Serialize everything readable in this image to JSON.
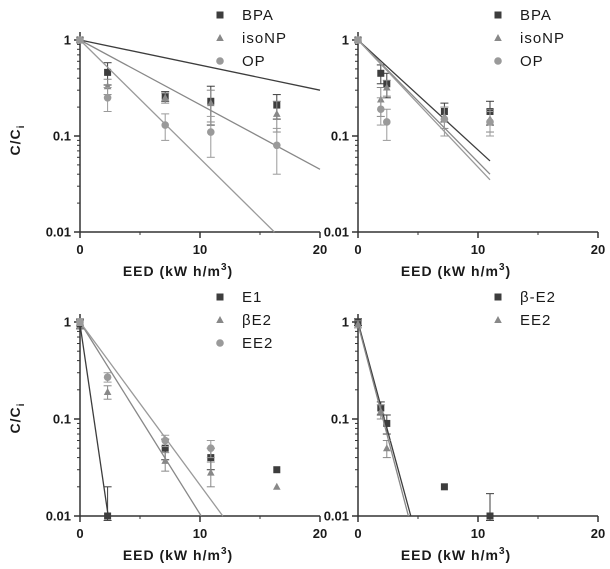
{
  "chart_data": [
    {
      "type": "scatter",
      "xlabel": "EED (kW h/m",
      "xlabel_sup": "3",
      "xlabel_close": ")",
      "ylabel": "C/C",
      "ylabel_sub": "i",
      "xlim": [
        0,
        20
      ],
      "ylim": [
        0.01,
        1
      ],
      "yscale": "log",
      "x_ticks": [
        "0",
        "10",
        "20"
      ],
      "y_ticks": [
        "0.01",
        "0.1",
        "1"
      ],
      "legend_position": "top-right",
      "series": [
        {
          "name": "BPA",
          "marker": "square",
          "color": "#3d3d3d",
          "points": [
            [
              0,
              1.0
            ],
            [
              2.3,
              0.46
            ],
            [
              7.1,
              0.26
            ],
            [
              10.9,
              0.23
            ],
            [
              16.4,
              0.21
            ]
          ],
          "errors": [
            0.05,
            0.12,
            0.03,
            0.1,
            0.06
          ],
          "fit_end": [
            20,
            0.3
          ]
        },
        {
          "name": "isoNP",
          "marker": "triangle",
          "color": "#888888",
          "points": [
            [
              0,
              1.0
            ],
            [
              2.3,
              0.33
            ],
            [
              7.1,
              0.25
            ],
            [
              10.9,
              0.22
            ],
            [
              16.4,
              0.17
            ]
          ],
          "errors": [
            0.05,
            0.06,
            0.03,
            0.08,
            0.06
          ],
          "fit_end": [
            20,
            0.045
          ]
        },
        {
          "name": "OP",
          "marker": "circle",
          "color": "#9a9a9a",
          "points": [
            [
              0,
              1.0
            ],
            [
              2.3,
              0.25
            ],
            [
              7.1,
              0.13
            ],
            [
              10.9,
              0.11
            ],
            [
              16.4,
              0.08
            ]
          ],
          "errors": [
            0.05,
            0.07,
            0.04,
            0.05,
            0.04
          ],
          "fit_end": [
            16.2,
            0.01
          ]
        }
      ]
    },
    {
      "type": "scatter",
      "xlabel": "EED (kW h/m",
      "xlabel_sup": "3",
      "xlabel_close": ")",
      "ylabel": "",
      "ylabel_sub": "",
      "xlim": [
        0,
        20
      ],
      "ylim": [
        0.01,
        1
      ],
      "yscale": "log",
      "x_ticks": [
        "0",
        "10",
        "20"
      ],
      "y_ticks": [
        "0.01",
        "0.1",
        "1"
      ],
      "legend_position": "top-right",
      "series": [
        {
          "name": "BPA",
          "marker": "square",
          "color": "#3d3d3d",
          "points": [
            [
              0,
              1.0
            ],
            [
              1.9,
              0.45
            ],
            [
              2.4,
              0.35
            ],
            [
              7.2,
              0.18
            ],
            [
              11.0,
              0.18
            ]
          ],
          "errors": [
            0.05,
            0.1,
            0.1,
            0.04,
            0.05
          ],
          "fit_end": [
            11.0,
            0.055
          ]
        },
        {
          "name": "isoNP",
          "marker": "triangle",
          "color": "#888888",
          "points": [
            [
              0,
              1.0
            ],
            [
              1.9,
              0.24
            ],
            [
              2.4,
              0.32
            ],
            [
              7.2,
              0.16
            ],
            [
              11.0,
              0.15
            ]
          ],
          "errors": [
            0.05,
            0.08,
            0.06,
            0.04,
            0.04
          ],
          "fit_end": [
            11.0,
            0.04
          ]
        },
        {
          "name": "OP",
          "marker": "circle",
          "color": "#9a9a9a",
          "points": [
            [
              0,
              1.0
            ],
            [
              1.9,
              0.19
            ],
            [
              2.4,
              0.14
            ],
            [
              7.2,
              0.15
            ],
            [
              11.0,
              0.14
            ]
          ],
          "errors": [
            0.05,
            0.06,
            0.05,
            0.05,
            0.04
          ],
          "fit_end": [
            11.0,
            0.035
          ]
        }
      ]
    },
    {
      "type": "scatter",
      "xlabel": "EED (kW h/m",
      "xlabel_sup": "3",
      "xlabel_close": ")",
      "ylabel": "C/C",
      "ylabel_sub": "i",
      "xlim": [
        0,
        20
      ],
      "ylim": [
        0.01,
        1
      ],
      "yscale": "log",
      "x_ticks": [
        "0",
        "10",
        "20"
      ],
      "y_ticks": [
        "0.01",
        "0.1",
        "1"
      ],
      "legend_position": "top-right",
      "series": [
        {
          "name": "E1",
          "marker": "square",
          "color": "#3d3d3d",
          "points": [
            [
              0,
              0.95
            ],
            [
              2.3,
              0.01
            ],
            [
              7.1,
              0.05
            ],
            [
              10.9,
              0.04
            ],
            [
              16.4,
              0.03
            ]
          ],
          "errors": [
            0.1,
            0.01,
            0.012,
            0.01,
            0.0
          ],
          "fit_end": [
            2.35,
            0.01
          ]
        },
        {
          "name": "βE2",
          "marker": "triangle",
          "color": "#888888",
          "points": [
            [
              0,
              1.0
            ],
            [
              2.3,
              0.19
            ],
            [
              7.1,
              0.037
            ],
            [
              10.9,
              0.028
            ],
            [
              16.4,
              0.02
            ]
          ],
          "errors": [
            0.08,
            0.03,
            0.008,
            0.008,
            0.0
          ],
          "fit_end": [
            10.1,
            0.01
          ]
        },
        {
          "name": "EE2",
          "marker": "circle",
          "color": "#9a9a9a",
          "points": [
            [
              0,
              1.0
            ],
            [
              2.3,
              0.27
            ],
            [
              7.1,
              0.06
            ],
            [
              10.9,
              0.05
            ],
            [
              16.4,
              0.0
            ]
          ],
          "errors": [
            0.08,
            0.03,
            0.008,
            0.01,
            0.0
          ],
          "fit_end": [
            11.9,
            0.01
          ]
        }
      ]
    },
    {
      "type": "scatter",
      "xlabel": "EED (kW h/m",
      "xlabel_sup": "3",
      "xlabel_close": ")",
      "ylabel": "",
      "ylabel_sub": "",
      "xlim": [
        0,
        20
      ],
      "ylim": [
        0.01,
        1
      ],
      "yscale": "log",
      "x_ticks": [
        "0",
        "10",
        "20"
      ],
      "y_ticks": [
        "0.01",
        "0.1",
        "1"
      ],
      "legend_position": "top-right",
      "series": [
        {
          "name": "β-E2",
          "marker": "square",
          "color": "#3d3d3d",
          "points": [
            [
              0,
              1.0
            ],
            [
              1.9,
              0.13
            ],
            [
              2.4,
              0.09
            ],
            [
              7.2,
              0.02
            ],
            [
              11.0,
              0.01
            ]
          ],
          "errors": [
            0.08,
            0.02,
            0.02,
            0.0,
            0.007
          ],
          "fit_end": [
            4.4,
            0.01
          ]
        },
        {
          "name": "EE2",
          "marker": "triangle",
          "color": "#888888",
          "points": [
            [
              0,
              0.95
            ],
            [
              1.9,
              0.12
            ],
            [
              2.4,
              0.05
            ]
          ],
          "errors": [
            0.08,
            0.02,
            0.01
          ],
          "fit_end": [
            4.2,
            0.01
          ]
        }
      ]
    }
  ]
}
